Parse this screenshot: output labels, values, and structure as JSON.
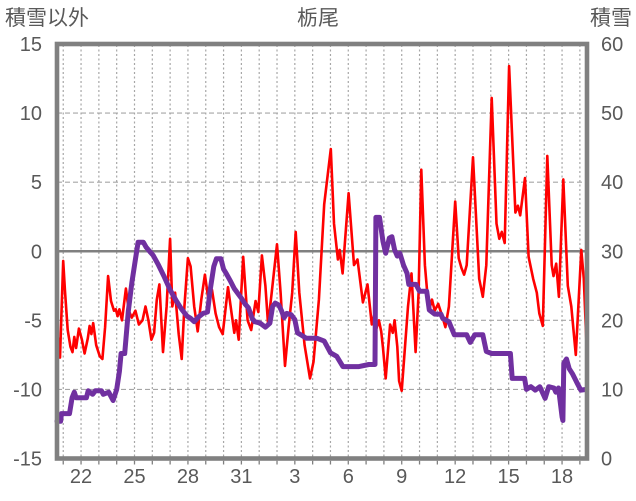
{
  "title": "栃尾",
  "left_axis": {
    "title": "積雪以外",
    "ticks": [
      15,
      10,
      5,
      0,
      -5,
      -10,
      -15
    ],
    "min": -15,
    "max": 15
  },
  "right_axis": {
    "title": "積雪",
    "ticks": [
      60,
      50,
      40,
      30,
      20,
      10,
      0
    ],
    "min": 0,
    "max": 60
  },
  "x_axis": {
    "labels": [
      {
        "day": 22,
        "text": "22"
      },
      {
        "day": 25,
        "text": "25"
      },
      {
        "day": 28,
        "text": "28"
      },
      {
        "day": 31,
        "text": "31"
      },
      {
        "day": 34,
        "text": "3"
      },
      {
        "day": 37,
        "text": "6"
      },
      {
        "day": 40,
        "text": "9"
      },
      {
        "day": 43,
        "text": "12"
      },
      {
        "day": 46,
        "text": "15"
      },
      {
        "day": 49,
        "text": "18"
      }
    ]
  },
  "colors": {
    "temperature_line": "#FF0000",
    "snow_line": "#7030A0",
    "text": "#595959",
    "border": "#808080",
    "zero_line": "#808080",
    "gridline": "#A6A6A6",
    "background": "#FFFFFF"
  },
  "chart_data": {
    "type": "line",
    "title": "栃尾",
    "x_range": [
      20.65,
      50.4
    ],
    "x_gridline_step": 1,
    "grid": true,
    "legend": "none",
    "left_ylim": [
      -15,
      15
    ],
    "right_ylim": [
      0,
      60
    ],
    "series": [
      {
        "name": "積雪以外 (temperature)",
        "axis": "left",
        "color": "#FF0000",
        "width": 2.6,
        "points": [
          [
            20.65,
            -7.7
          ],
          [
            20.72,
            -6.3
          ],
          [
            20.82,
            -7.7
          ],
          [
            21.0,
            -0.7
          ],
          [
            21.1,
            -2.9
          ],
          [
            21.25,
            -5.7
          ],
          [
            21.4,
            -6.9
          ],
          [
            21.52,
            -7.3
          ],
          [
            21.62,
            -6.2
          ],
          [
            21.72,
            -7.0
          ],
          [
            21.88,
            -5.6
          ],
          [
            22.05,
            -6.4
          ],
          [
            22.2,
            -7.4
          ],
          [
            22.38,
            -6.3
          ],
          [
            22.48,
            -5.4
          ],
          [
            22.58,
            -6.0
          ],
          [
            22.68,
            -5.2
          ],
          [
            22.85,
            -6.8
          ],
          [
            23.05,
            -7.6
          ],
          [
            23.2,
            -7.8
          ],
          [
            23.35,
            -5.5
          ],
          [
            23.52,
            -1.8
          ],
          [
            23.68,
            -3.6
          ],
          [
            23.85,
            -4.3
          ],
          [
            23.95,
            -4.2
          ],
          [
            24.05,
            -4.7
          ],
          [
            24.15,
            -4.2
          ],
          [
            24.3,
            -5.0
          ],
          [
            24.52,
            -2.7
          ],
          [
            24.68,
            -4.3
          ],
          [
            24.85,
            -4.8
          ],
          [
            25.05,
            -4.3
          ],
          [
            25.25,
            -5.3
          ],
          [
            25.45,
            -5.0
          ],
          [
            25.62,
            -4.0
          ],
          [
            25.78,
            -5.0
          ],
          [
            25.95,
            -6.4
          ],
          [
            26.1,
            -5.9
          ],
          [
            26.25,
            -3.5
          ],
          [
            26.4,
            -2.4
          ],
          [
            26.6,
            -7.3
          ],
          [
            26.8,
            -4.0
          ],
          [
            27.0,
            0.9
          ],
          [
            27.12,
            -4.0
          ],
          [
            27.28,
            -3.0
          ],
          [
            27.48,
            -6.0
          ],
          [
            27.65,
            -7.8
          ],
          [
            27.8,
            -4.0
          ],
          [
            28.0,
            -0.5
          ],
          [
            28.15,
            -1.1
          ],
          [
            28.35,
            -4.0
          ],
          [
            28.55,
            -5.8
          ],
          [
            28.75,
            -3.5
          ],
          [
            28.95,
            -1.7
          ],
          [
            29.15,
            -3.5
          ],
          [
            29.35,
            -2.8
          ],
          [
            29.55,
            -4.5
          ],
          [
            29.75,
            -5.5
          ],
          [
            29.95,
            -6.0
          ],
          [
            30.25,
            -2.6
          ],
          [
            30.45,
            -4.5
          ],
          [
            30.6,
            -5.9
          ],
          [
            30.7,
            -5.0
          ],
          [
            30.85,
            -6.4
          ],
          [
            31.1,
            -0.4
          ],
          [
            31.35,
            -5.0
          ],
          [
            31.55,
            -5.7
          ],
          [
            31.8,
            -3.6
          ],
          [
            31.95,
            -4.4
          ],
          [
            32.15,
            -0.3
          ],
          [
            32.35,
            -2.5
          ],
          [
            32.5,
            -5.3
          ],
          [
            32.7,
            -3.0
          ],
          [
            33.0,
            0.5
          ],
          [
            33.2,
            -3.0
          ],
          [
            33.45,
            -8.3
          ],
          [
            33.65,
            -5.5
          ],
          [
            33.85,
            -3.0
          ],
          [
            34.05,
            1.4
          ],
          [
            34.25,
            -3.0
          ],
          [
            34.55,
            -6.8
          ],
          [
            34.85,
            -9.2
          ],
          [
            35.05,
            -8.0
          ],
          [
            35.35,
            -3.5
          ],
          [
            35.65,
            3.4
          ],
          [
            36.02,
            7.4
          ],
          [
            36.2,
            2.0
          ],
          [
            36.42,
            -0.6
          ],
          [
            36.52,
            0.1
          ],
          [
            36.68,
            -1.6
          ],
          [
            37.02,
            4.2
          ],
          [
            37.32,
            -1.0
          ],
          [
            37.52,
            -0.6
          ],
          [
            37.82,
            -3.7
          ],
          [
            38.08,
            -2.4
          ],
          [
            38.32,
            -5.3
          ],
          [
            38.48,
            -4.5
          ],
          [
            38.58,
            -5.6
          ],
          [
            38.72,
            -5.0
          ],
          [
            38.85,
            -5.8
          ],
          [
            38.95,
            -7.0
          ],
          [
            39.1,
            -9.2
          ],
          [
            39.25,
            -6.8
          ],
          [
            39.35,
            -5.3
          ],
          [
            39.5,
            -5.9
          ],
          [
            39.6,
            -5.0
          ],
          [
            39.75,
            -6.9
          ],
          [
            39.85,
            -9.4
          ],
          [
            40.0,
            -10.1
          ],
          [
            40.15,
            -7.5
          ],
          [
            40.35,
            -4.0
          ],
          [
            40.55,
            -1.6
          ],
          [
            40.78,
            -7.3
          ],
          [
            40.95,
            -3.0
          ],
          [
            41.1,
            5.9
          ],
          [
            41.3,
            -1.0
          ],
          [
            41.45,
            -3.3
          ],
          [
            41.55,
            -4.2
          ],
          [
            41.7,
            -3.5
          ],
          [
            41.85,
            -4.3
          ],
          [
            42.05,
            -3.8
          ],
          [
            42.25,
            -4.6
          ],
          [
            42.45,
            -5.5
          ],
          [
            42.65,
            -4.0
          ],
          [
            43.0,
            3.6
          ],
          [
            43.2,
            -0.5
          ],
          [
            43.35,
            -1.2
          ],
          [
            43.5,
            -1.7
          ],
          [
            43.65,
            -1.0
          ],
          [
            44.0,
            6.8
          ],
          [
            44.35,
            -2.0
          ],
          [
            44.55,
            -3.3
          ],
          [
            44.75,
            -1.0
          ],
          [
            45.05,
            11.1
          ],
          [
            45.32,
            2.0
          ],
          [
            45.48,
            0.9
          ],
          [
            45.62,
            1.4
          ],
          [
            45.78,
            0.6
          ],
          [
            46.03,
            13.4
          ],
          [
            46.38,
            2.8
          ],
          [
            46.52,
            3.3
          ],
          [
            46.65,
            2.6
          ],
          [
            46.92,
            5.3
          ],
          [
            47.12,
            -0.4
          ],
          [
            47.38,
            -2.0
          ],
          [
            47.58,
            -3.0
          ],
          [
            47.72,
            -4.5
          ],
          [
            47.92,
            -5.4
          ],
          [
            48.17,
            6.9
          ],
          [
            48.42,
            -1.0
          ],
          [
            48.52,
            -1.8
          ],
          [
            48.67,
            -0.9
          ],
          [
            48.82,
            -3.3
          ],
          [
            49.07,
            5.2
          ],
          [
            49.32,
            -2.5
          ],
          [
            49.52,
            -4.0
          ],
          [
            49.77,
            -7.5
          ],
          [
            50.08,
            0.1
          ],
          [
            50.22,
            -2.0
          ],
          [
            50.38,
            -6.9
          ]
        ]
      },
      {
        "name": "積雪 (snow depth cm)",
        "axis": "right",
        "color": "#7030A0",
        "width": 5,
        "points": [
          [
            20.65,
            5.4
          ],
          [
            20.85,
            5.4
          ],
          [
            20.9,
            6.5
          ],
          [
            21.35,
            6.5
          ],
          [
            21.5,
            8.8
          ],
          [
            21.62,
            9.6
          ],
          [
            21.72,
            8.8
          ],
          [
            22.3,
            8.8
          ],
          [
            22.4,
            9.8
          ],
          [
            22.65,
            9.3
          ],
          [
            22.8,
            9.8
          ],
          [
            23.15,
            9.8
          ],
          [
            23.25,
            9.3
          ],
          [
            23.55,
            9.6
          ],
          [
            23.8,
            8.4
          ],
          [
            24.0,
            10.0
          ],
          [
            24.15,
            12.6
          ],
          [
            24.25,
            15.2
          ],
          [
            24.45,
            15.2
          ],
          [
            24.65,
            21.3
          ],
          [
            24.85,
            25.4
          ],
          [
            25.05,
            28.8
          ],
          [
            25.2,
            31.3
          ],
          [
            25.5,
            31.3
          ],
          [
            25.65,
            30.6
          ],
          [
            25.85,
            30.0
          ],
          [
            26.05,
            29.4
          ],
          [
            26.35,
            28.0
          ],
          [
            26.65,
            26.4
          ],
          [
            27.0,
            24.4
          ],
          [
            27.35,
            22.8
          ],
          [
            27.65,
            21.6
          ],
          [
            27.95,
            20.6
          ],
          [
            28.15,
            20.3
          ],
          [
            28.35,
            19.8
          ],
          [
            28.6,
            20.5
          ],
          [
            28.85,
            21.0
          ],
          [
            29.1,
            21.2
          ],
          [
            29.25,
            24.4
          ],
          [
            29.45,
            27.8
          ],
          [
            29.6,
            28.9
          ],
          [
            29.85,
            28.9
          ],
          [
            30.0,
            27.4
          ],
          [
            30.15,
            26.8
          ],
          [
            30.4,
            25.6
          ],
          [
            30.6,
            24.6
          ],
          [
            30.8,
            23.9
          ],
          [
            31.0,
            23.2
          ],
          [
            31.2,
            22.4
          ],
          [
            31.4,
            21.8
          ],
          [
            31.6,
            20.3
          ],
          [
            31.75,
            19.8
          ],
          [
            32.05,
            19.6
          ],
          [
            32.35,
            19.0
          ],
          [
            32.6,
            19.6
          ],
          [
            32.75,
            22.0
          ],
          [
            32.9,
            22.5
          ],
          [
            33.1,
            22.2
          ],
          [
            33.25,
            21.4
          ],
          [
            33.4,
            20.4
          ],
          [
            33.55,
            21.0
          ],
          [
            33.8,
            20.8
          ],
          [
            34.0,
            20.1
          ],
          [
            34.15,
            18.2
          ],
          [
            34.4,
            17.8
          ],
          [
            34.65,
            17.4
          ],
          [
            35.25,
            17.4
          ],
          [
            35.65,
            17.0
          ],
          [
            36.0,
            15.3
          ],
          [
            36.35,
            14.8
          ],
          [
            36.7,
            13.3
          ],
          [
            37.6,
            13.3
          ],
          [
            38.15,
            13.6
          ],
          [
            38.5,
            13.6
          ],
          [
            38.55,
            34.9
          ],
          [
            38.75,
            34.9
          ],
          [
            38.95,
            31.4
          ],
          [
            39.1,
            29.7
          ],
          [
            39.3,
            31.9
          ],
          [
            39.45,
            32.1
          ],
          [
            39.6,
            30.2
          ],
          [
            39.75,
            29.3
          ],
          [
            39.9,
            29.7
          ],
          [
            40.1,
            28.0
          ],
          [
            40.3,
            26.8
          ],
          [
            40.4,
            25.2
          ],
          [
            40.8,
            25.2
          ],
          [
            41.0,
            24.2
          ],
          [
            41.4,
            24.2
          ],
          [
            41.55,
            21.5
          ],
          [
            41.85,
            20.9
          ],
          [
            42.2,
            20.9
          ],
          [
            42.3,
            20.3
          ],
          [
            42.65,
            19.8
          ],
          [
            42.95,
            17.9
          ],
          [
            43.65,
            17.9
          ],
          [
            43.85,
            16.8
          ],
          [
            44.1,
            17.9
          ],
          [
            44.55,
            17.9
          ],
          [
            44.75,
            15.5
          ],
          [
            45.05,
            15.2
          ],
          [
            46.1,
            15.2
          ],
          [
            46.2,
            11.6
          ],
          [
            46.9,
            11.6
          ],
          [
            47.0,
            10.0
          ],
          [
            47.25,
            10.4
          ],
          [
            47.5,
            9.9
          ],
          [
            47.75,
            10.4
          ],
          [
            48.05,
            8.7
          ],
          [
            48.25,
            10.4
          ],
          [
            48.55,
            10.2
          ],
          [
            48.65,
            9.6
          ],
          [
            48.8,
            10.2
          ],
          [
            49.0,
            6.0
          ],
          [
            49.05,
            5.5
          ],
          [
            49.1,
            13.8
          ],
          [
            49.25,
            14.4
          ],
          [
            49.4,
            13.0
          ],
          [
            49.6,
            12.2
          ],
          [
            49.85,
            10.9
          ],
          [
            50.05,
            9.9
          ],
          [
            50.38,
            10.0
          ]
        ]
      }
    ]
  }
}
